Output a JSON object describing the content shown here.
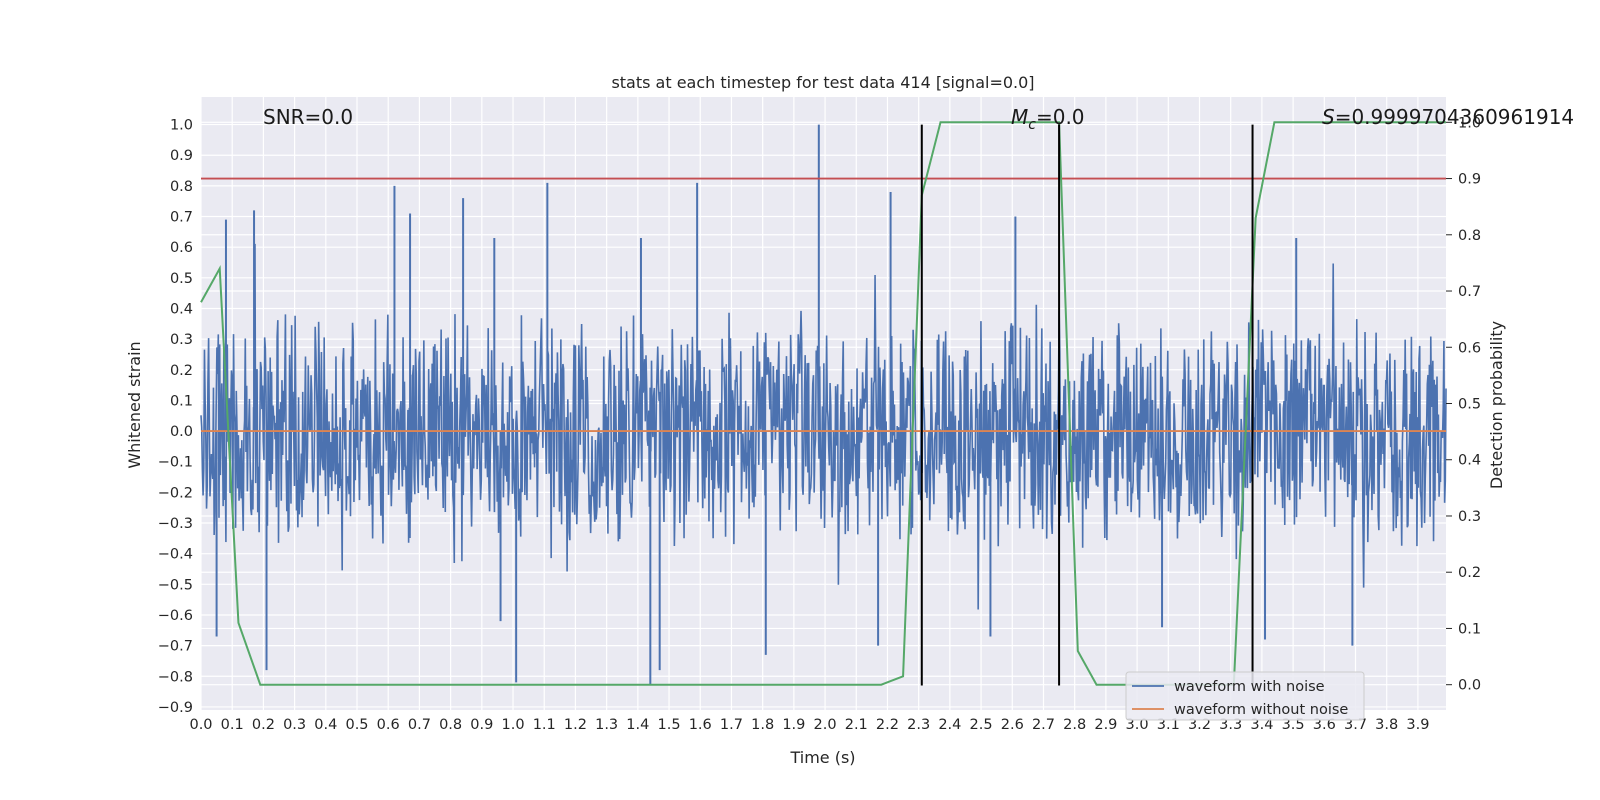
{
  "chart_data": {
    "type": "line",
    "title": "stats at each timestep for test data 414 [signal=0.0]",
    "xlabel": "Time (s)",
    "ylabel": "Whitened strain",
    "y2label": "Detection probability",
    "xlim": [
      0.0,
      3.99
    ],
    "ylim": [
      -0.91,
      1.09
    ],
    "y2lim": [
      -0.045,
      1.045
    ],
    "xticks": [
      "0.0",
      "0.1",
      "0.2",
      "0.3",
      "0.4",
      "0.5",
      "0.6",
      "0.7",
      "0.8",
      "0.9",
      "1.0",
      "1.1",
      "1.2",
      "1.3",
      "1.4",
      "1.5",
      "1.6",
      "1.7",
      "1.8",
      "1.9",
      "2.0",
      "2.1",
      "2.2",
      "2.3",
      "2.4",
      "2.5",
      "2.6",
      "2.7",
      "2.8",
      "2.9",
      "3.0",
      "3.1",
      "3.2",
      "3.3",
      "3.4",
      "3.5",
      "3.6",
      "3.7",
      "3.8",
      "3.9"
    ],
    "yticks": [
      "1.0",
      "0.9",
      "0.8",
      "0.7",
      "0.6",
      "0.5",
      "0.4",
      "0.3",
      "0.2",
      "0.1",
      "0.0",
      "−0.1",
      "−0.2",
      "−0.3",
      "−0.4",
      "−0.5",
      "−0.6",
      "−0.7",
      "−0.8",
      "−0.9"
    ],
    "y2ticks": [
      "1.0",
      "0.9",
      "0.8",
      "0.7",
      "0.6",
      "0.5",
      "0.4",
      "0.3",
      "0.2",
      "0.1",
      "0.0"
    ],
    "annotations": {
      "snr": "SNR=0.0",
      "mc_symbol": "M",
      "mc_sub": "c",
      "mc_value": "=0.0",
      "s_symbol": "S",
      "s_value": "=0.9999704360961914"
    },
    "series": [
      {
        "name": "waveform with noise",
        "color": "#4c72b0",
        "axis": "left",
        "description": "whitened noisy strain, roughly between -0.5 and 0.5 with spikes",
        "peaks": [
          [
            0.08,
            0.69
          ],
          [
            0.17,
            0.72
          ],
          [
            0.62,
            0.8
          ],
          [
            0.67,
            0.71
          ],
          [
            0.84,
            0.76
          ],
          [
            0.94,
            0.63
          ],
          [
            1.11,
            0.81
          ],
          [
            1.41,
            0.63
          ],
          [
            1.59,
            0.81
          ],
          [
            1.98,
            1.0
          ],
          [
            2.21,
            0.78
          ],
          [
            2.61,
            0.7
          ],
          [
            3.51,
            0.63
          ]
        ],
        "troughs": [
          [
            0.05,
            -0.67
          ],
          [
            0.21,
            -0.78
          ],
          [
            0.96,
            -0.62
          ],
          [
            1.01,
            -0.82
          ],
          [
            1.44,
            -0.83
          ],
          [
            1.47,
            -0.78
          ],
          [
            1.81,
            -0.73
          ],
          [
            2.17,
            -0.7
          ],
          [
            2.53,
            -0.67
          ],
          [
            3.08,
            -0.64
          ],
          [
            3.41,
            -0.68
          ],
          [
            3.69,
            -0.7
          ]
        ]
      },
      {
        "name": "waveform without noise",
        "color": "#dd8452",
        "axis": "left",
        "x": [
          0.0,
          3.99
        ],
        "y": [
          0.0,
          0.0
        ]
      },
      {
        "name": "detection probability",
        "color": "#55a868",
        "axis": "right",
        "x": [
          0.0,
          0.06,
          0.12,
          0.19,
          2.18,
          2.25,
          2.31,
          2.37,
          2.75,
          2.81,
          2.87,
          3.31,
          3.38,
          3.44,
          3.99
        ],
        "y": [
          0.68,
          0.74,
          0.11,
          0.0,
          0.0,
          0.015,
          0.87,
          1.0,
          1.0,
          0.06,
          0.0,
          0.0,
          0.83,
          1.0,
          1.0
        ]
      }
    ],
    "threshold": {
      "axis": "right",
      "value": 0.9,
      "color": "#c44e52"
    },
    "vlines": [
      2.31,
      2.75,
      3.37
    ],
    "vline_range": [
      -0.83,
      1.0
    ],
    "legend": {
      "position": "lower-right",
      "entries": [
        {
          "label": "waveform with noise",
          "color": "#4c72b0"
        },
        {
          "label": "waveform without noise",
          "color": "#dd8452"
        }
      ]
    }
  }
}
